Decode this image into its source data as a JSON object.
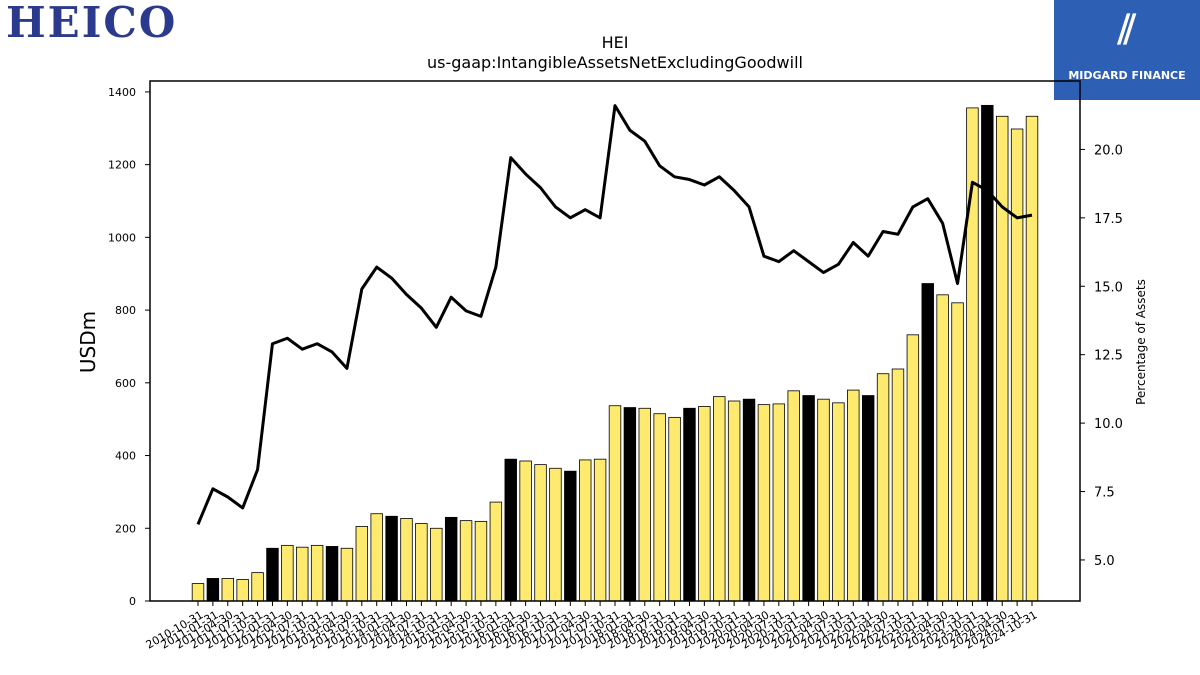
{
  "header": {
    "company_logo_text": "HEICO",
    "brand_name": "MIDGARD FINANCE"
  },
  "colors": {
    "bar_regular": "#ffea70",
    "bar_highlight": "#000000",
    "line": "#000000"
  },
  "chart_data": {
    "type": "bar",
    "title": "HEI",
    "subtitle": "us-gaap:IntangibleAssetsNetExcludingGoodwill",
    "ylabel": "USDm",
    "y2label": "Percentage of Assets",
    "ylim": [
      0,
      1430
    ],
    "y2lim": [
      3.5,
      22.5
    ],
    "yticks": [
      0,
      200,
      400,
      600,
      800,
      1000,
      1200,
      1400
    ],
    "y2ticks": [
      5.0,
      7.5,
      10.0,
      12.5,
      15.0,
      17.5,
      20.0
    ],
    "categories": [
      "2010-10-31",
      "2011-01-31",
      "2011-04-30",
      "2011-07-31",
      "2011-10-31",
      "2012-01-31",
      "2012-04-30",
      "2012-07-31",
      "2012-10-31",
      "2013-01-31",
      "2013-04-30",
      "2013-07-31",
      "2013-10-31",
      "2014-01-31",
      "2014-04-30",
      "2014-07-31",
      "2014-10-31",
      "2015-01-31",
      "2015-04-30",
      "2015-07-31",
      "2015-10-31",
      "2016-01-31",
      "2016-04-30",
      "2016-07-31",
      "2016-10-31",
      "2017-01-31",
      "2017-04-30",
      "2017-07-31",
      "2017-10-31",
      "2018-01-31",
      "2018-04-30",
      "2018-07-31",
      "2018-10-31",
      "2019-01-31",
      "2019-04-30",
      "2019-07-31",
      "2019-10-31",
      "2020-01-31",
      "2020-04-30",
      "2020-07-31",
      "2020-10-31",
      "2021-01-31",
      "2021-04-30",
      "2021-07-31",
      "2021-10-31",
      "2022-01-31",
      "2022-04-30",
      "2022-07-31",
      "2022-10-31",
      "2023-01-31",
      "2023-04-30",
      "2023-07-31",
      "2023-10-31",
      "2024-01-31",
      "2024-04-30",
      "2024-07-31",
      "2024-10-31"
    ],
    "series": [
      {
        "kind": "bar",
        "values": [
          48,
          62,
          62,
          59,
          78,
          145,
          153,
          148,
          153,
          150,
          145,
          205,
          240,
          233,
          227,
          213,
          200,
          230,
          221,
          219,
          272,
          390,
          385,
          375,
          365,
          357,
          388,
          390,
          537,
          532,
          530,
          515,
          505,
          530,
          535,
          562,
          550,
          555,
          540,
          542,
          578,
          565,
          555,
          545,
          580,
          565,
          625,
          638,
          732,
          873,
          842,
          820,
          1356,
          1363,
          1333,
          1298,
          1333
        ],
        "highlight_index_is_fiscal_year_end": [
          false,
          true,
          false,
          false,
          false,
          true,
          false,
          false,
          false,
          true,
          false,
          false,
          false,
          true,
          false,
          false,
          false,
          true,
          false,
          false,
          false,
          true,
          false,
          false,
          false,
          true,
          false,
          false,
          false,
          true,
          false,
          false,
          false,
          true,
          false,
          false,
          false,
          true,
          false,
          false,
          false,
          true,
          false,
          false,
          false,
          true,
          false,
          false,
          false,
          true,
          false,
          false,
          false,
          true,
          false,
          false,
          false
        ]
      },
      {
        "kind": "line",
        "axis": "right",
        "values": [
          6.3,
          7.6,
          7.3,
          6.9,
          8.3,
          12.9,
          13.1,
          12.7,
          12.9,
          12.6,
          12.0,
          14.9,
          15.7,
          15.3,
          14.7,
          14.2,
          13.5,
          14.6,
          14.1,
          13.9,
          15.7,
          19.7,
          19.1,
          18.6,
          17.9,
          17.5,
          17.8,
          17.5,
          21.6,
          20.7,
          20.3,
          19.4,
          19.0,
          18.9,
          18.7,
          19.0,
          18.5,
          17.9,
          16.1,
          15.9,
          16.3,
          15.9,
          15.5,
          15.8,
          16.6,
          16.1,
          17.0,
          16.9,
          17.9,
          18.2,
          17.3,
          15.1,
          18.8,
          18.5,
          17.9,
          17.5,
          17.6
        ]
      }
    ]
  }
}
